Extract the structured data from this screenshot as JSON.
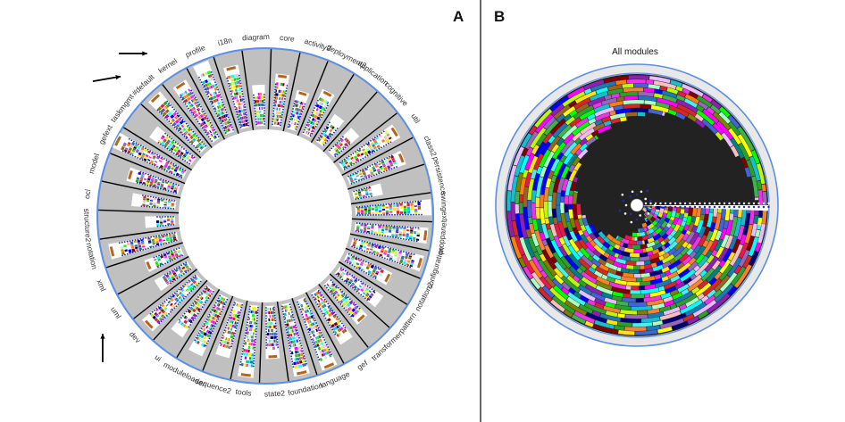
{
  "panels": {
    "a": {
      "letter": "A"
    },
    "b": {
      "letter": "B",
      "title": "All modules"
    }
  },
  "modules": [
    "core",
    "activity2",
    "deployment2",
    "application",
    "cognitive",
    "util",
    "class2",
    "persistence",
    "swingext",
    "proppanel",
    "configuration",
    "notation2",
    "pattern",
    "transformer",
    "gef",
    "language",
    "foundation",
    "state2",
    "tools",
    "sequence2",
    "moduleloader",
    "ui",
    "dev",
    "uml",
    "xml",
    "notation",
    "structure2",
    "ocl",
    "model",
    "gefext",
    "taskmgmt",
    "#default",
    "kernel",
    "profile",
    "i18n",
    "diagram"
  ],
  "arrows": [
    "#default",
    "kernel",
    "uml"
  ],
  "palette": [
    "#e6194b",
    "#3cb44b",
    "#ffe119",
    "#4363d8",
    "#f58231",
    "#911eb4",
    "#46f0f0",
    "#f032e6",
    "#bcf60c",
    "#fabebe",
    "#008080",
    "#e6beff",
    "#9a6324",
    "#800000",
    "#aaffc3",
    "#808000",
    "#000075",
    "#2ca02c",
    "#1f77b4",
    "#ff7f0e",
    "#d62728",
    "#9467bd",
    "#17becf",
    "#ff00ff",
    "#00ff00",
    "#0000ff",
    "#ffff00",
    "#00ffff"
  ],
  "colors": {
    "ring_fill": "#c0c0c0",
    "ring_border": "#5b8ee6",
    "spoke": "#000000",
    "panel_divider": "#000000",
    "dot_blue": "#1d2fa6",
    "bar_brown": "#b5651d"
  }
}
